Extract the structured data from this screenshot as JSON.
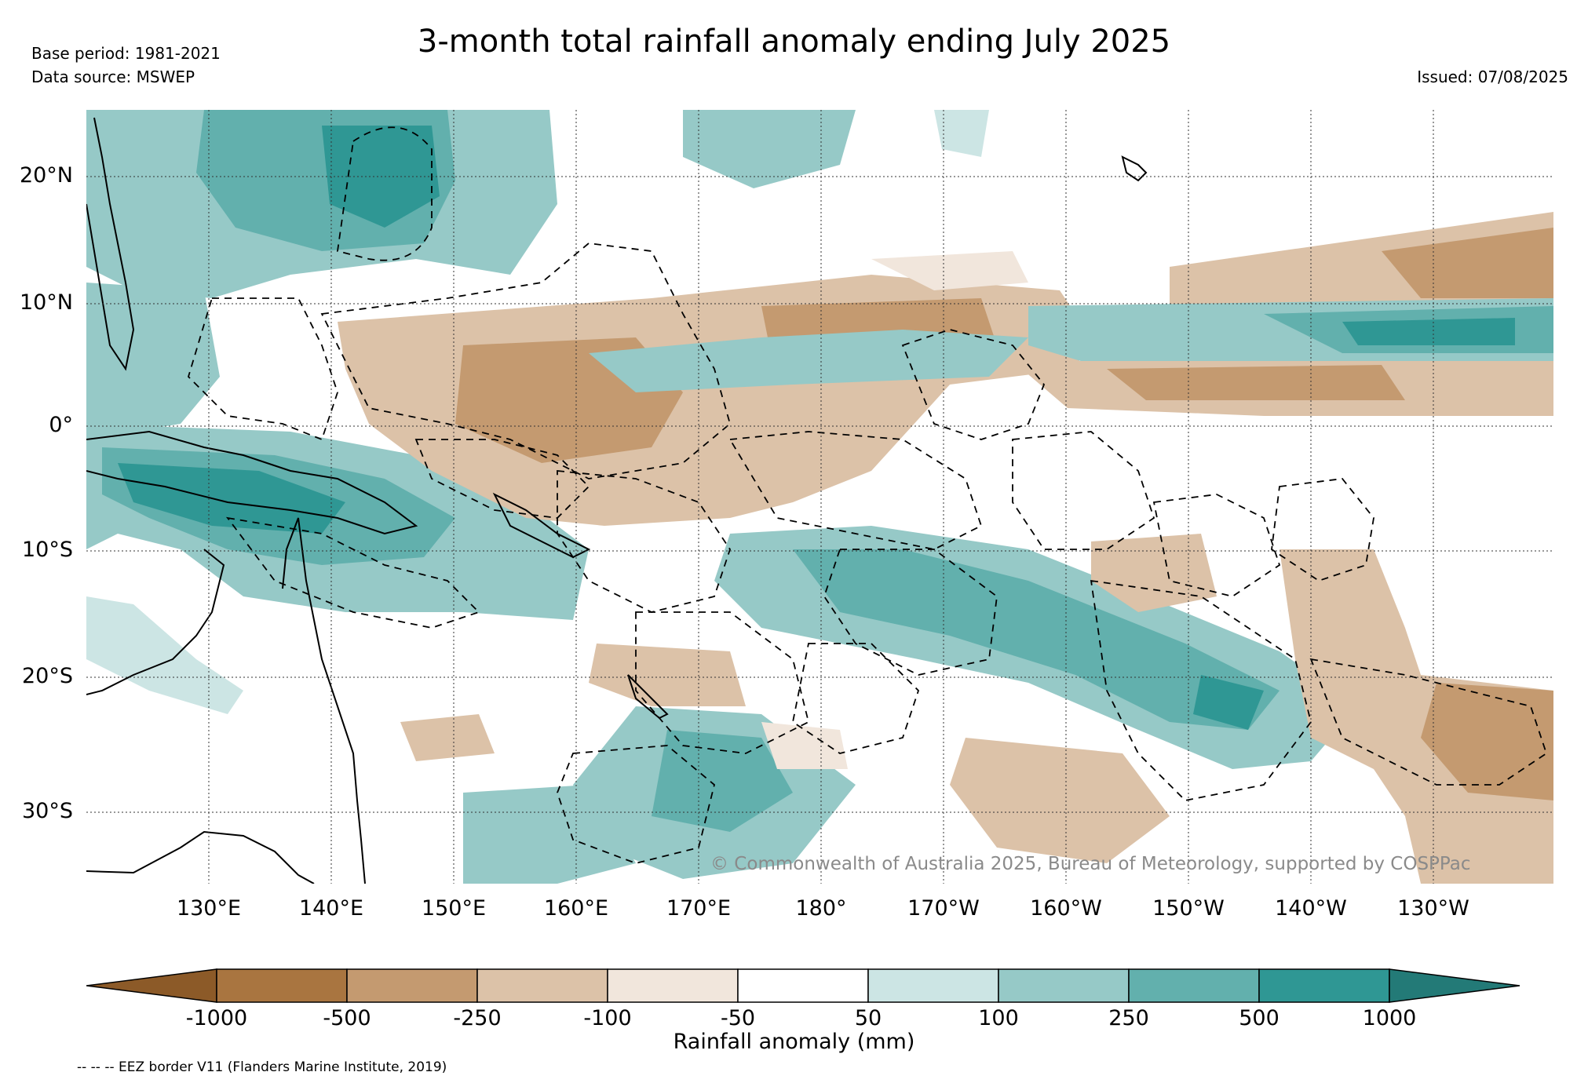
{
  "header": {
    "title": "3-month total rainfall anomaly ending July 2025",
    "base_period": "Base period: 1981-2021",
    "data_source": "Data source: MSWEP",
    "issued": "Issued: 07/08/2025"
  },
  "map": {
    "lat_labels": [
      "20°N",
      "10°N",
      "0°",
      "10°S",
      "20°S",
      "30°S"
    ],
    "lon_labels": [
      "130°E",
      "140°E",
      "150°E",
      "160°E",
      "170°E",
      "180°",
      "170°W",
      "160°W",
      "150°W",
      "140°W",
      "130°W"
    ],
    "copyright": "© Commonwealth of Australia 2025, Bureau of Meteorology, supported by COSPPac"
  },
  "colorbar": {
    "ticks": [
      "-1000",
      "-500",
      "-250",
      "-100",
      "-50",
      "50",
      "100",
      "250",
      "500",
      "1000"
    ],
    "colors": [
      "#8c5a28",
      "#a97540",
      "#c49a70",
      "#dcc2a8",
      "#f1e6dc",
      "#ffffff",
      "#cce5e4",
      "#96c9c7",
      "#62b0ad",
      "#2f9794",
      "#237a77"
    ],
    "label": "Rainfall anomaly (mm)"
  },
  "footer": {
    "eez_note": "-- -- -- EEZ border V11 (Flanders Marine Institute, 2019)"
  }
}
